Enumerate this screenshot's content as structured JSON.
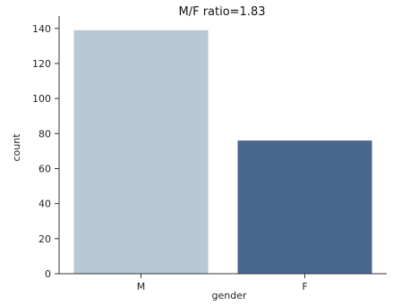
{
  "chart_data": {
    "type": "bar",
    "title": "M/F ratio=1.83",
    "xlabel": "gender",
    "ylabel": "count",
    "categories": [
      "M",
      "F"
    ],
    "values": [
      139,
      76
    ],
    "colors": [
      "#b7c8d6",
      "#4a6790"
    ],
    "ylim": [
      0,
      145
    ],
    "yticks": [
      0,
      20,
      40,
      60,
      80,
      100,
      120,
      140
    ],
    "grid": false,
    "legend": "none"
  }
}
